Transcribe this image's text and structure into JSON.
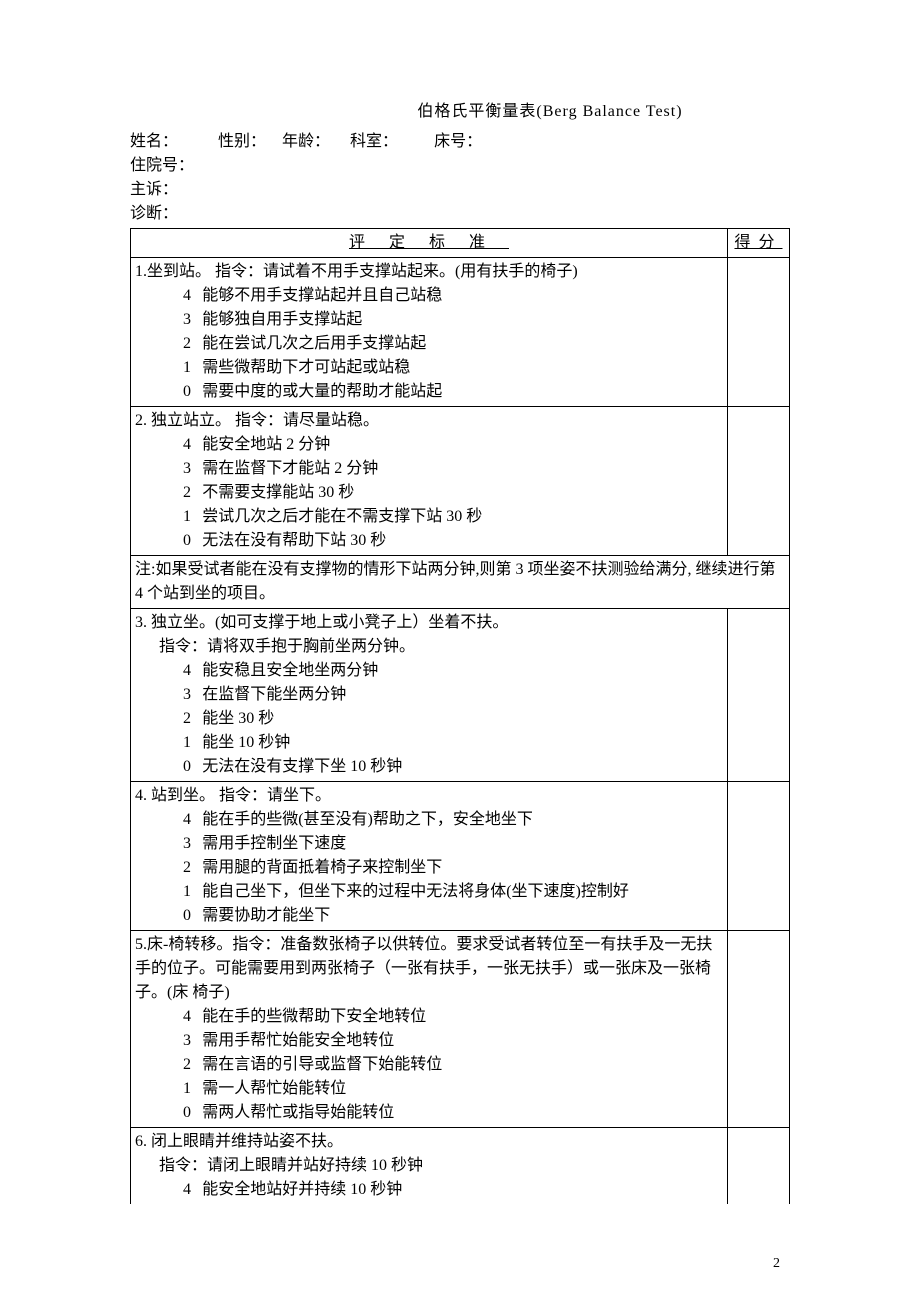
{
  "title": "伯格氏平衡量表(Berg Balance Test)",
  "header": {
    "name_label": "姓名：",
    "sex_label": "性别：",
    "age_label": "年龄：",
    "dept_label": "科室：",
    "bed_label": "床号：",
    "admission_label": "住院号：",
    "chief_complaint_label": "主诉：",
    "diagnosis_label": "诊断："
  },
  "table_headers": {
    "criteria": "评定标准",
    "score": "得分"
  },
  "items": [
    {
      "num": "1.",
      "title": "坐到站。 指令：请试着不用手支撑站起来。(用有扶手的椅子)",
      "scores": [
        {
          "n": "4",
          "text": "能够不用手支撑站起并且自己站稳"
        },
        {
          "n": "3",
          "text": "能够独自用手支撑站起"
        },
        {
          "n": "2",
          "text": "能在尝试几次之后用手支撑站起"
        },
        {
          "n": "1",
          "text": "需些微帮助下才可站起或站稳"
        },
        {
          "n": "0",
          "text": "需要中度的或大量的帮助才能站起"
        }
      ]
    },
    {
      "num": "2.",
      "title": " 独立站立。 指令：请尽量站稳。",
      "scores": [
        {
          "n": "4",
          "text": "能安全地站 2 分钟"
        },
        {
          "n": "3",
          "text": "需在监督下才能站 2 分钟"
        },
        {
          "n": "2",
          "text": "不需要支撑能站 30 秒"
        },
        {
          "n": "1",
          "text": "尝试几次之后才能在不需支撑下站 30 秒"
        },
        {
          "n": "0",
          "text": "无法在没有帮助下站 30 秒"
        }
      ]
    }
  ],
  "note": "注:如果受试者能在没有支撑物的情形下站两分钟,则第 3 项坐姿不扶测验给满分, 继续进行第 4 个站到坐的项目。",
  "items2": [
    {
      "num": "3.",
      "title": " 独立坐。(如可支撑于地上或小凳子上）坐着不扶。",
      "sub": "指令：请将双手抱于胸前坐两分钟。",
      "scores": [
        {
          "n": "4",
          "text": "能安稳且安全地坐两分钟"
        },
        {
          "n": "3",
          "text": "在监督下能坐两分钟"
        },
        {
          "n": "2",
          "text": "能坐 30 秒"
        },
        {
          "n": "1",
          "text": "能坐 10 秒钟"
        },
        {
          "n": "0",
          "text": "无法在没有支撑下坐 10 秒钟"
        }
      ]
    },
    {
      "num": "4.",
      "title": " 站到坐。 指令：请坐下。",
      "scores": [
        {
          "n": "4",
          "text": "能在手的些微(甚至没有)帮助之下，安全地坐下"
        },
        {
          "n": "3",
          "text": "需用手控制坐下速度"
        },
        {
          "n": "2",
          "text": "需用腿的背面抵着椅子来控制坐下"
        },
        {
          "n": "1",
          "text": "能自己坐下，但坐下来的过程中无法将身体(坐下速度)控制好"
        },
        {
          "n": "0",
          "text": "需要协助才能坐下"
        }
      ]
    },
    {
      "num": "5.",
      "title": "床-椅转移。指令：准备数张椅子以供转位。要求受试者转位至一有扶手及一无扶手的位子。可能需要用到两张椅子（一张有扶手，一张无扶手）或一张床及一张椅子。(床         椅子)",
      "title_indent": true,
      "scores": [
        {
          "n": "4",
          "text": "能在手的些微帮助下安全地转位"
        },
        {
          "n": "3",
          "text": "需用手帮忙始能安全地转位"
        },
        {
          "n": "2",
          "text": "需在言语的引导或监督下始能转位"
        },
        {
          "n": "1",
          "text": "需一人帮忙始能转位"
        },
        {
          "n": "0",
          "text": "需两人帮忙或指导始能转位"
        }
      ]
    },
    {
      "num": "6.",
      "title": " 闭上眼睛并维持站姿不扶。",
      "sub": "指令：请闭上眼睛并站好持续 10 秒钟",
      "scores": [
        {
          "n": "4",
          "text": "能安全地站好并持续 10 秒钟"
        }
      ]
    }
  ],
  "page_number": "2"
}
